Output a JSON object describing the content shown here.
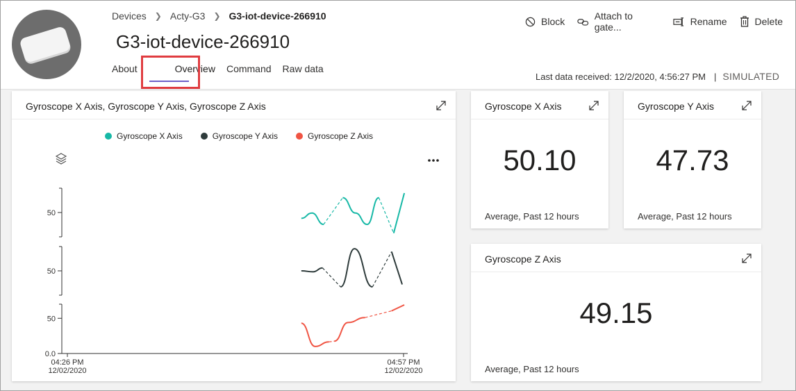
{
  "breadcrumb": {
    "items": [
      "Devices",
      "Acty-G3",
      "G3-iot-device-266910"
    ]
  },
  "device": {
    "title": "G3-iot-device-266910",
    "image": "device-image"
  },
  "tabs": [
    "About",
    "Overview",
    "Command",
    "Raw data"
  ],
  "active_tab": "Overview",
  "actions": {
    "block": "Block",
    "attach": "Attach to gate...",
    "rename": "Rename",
    "delete": "Delete"
  },
  "status": {
    "last_data": "Last data received: 12/2/2020, 4:56:27 PM",
    "separator": "|",
    "simulated": "SIMULATED"
  },
  "chart_card": {
    "title": "Gyroscope X Axis, Gyroscope Y Axis, Gyroscope Z Axis"
  },
  "tiles": {
    "x": {
      "title": "Gyroscope X Axis",
      "value": "50.10",
      "footer": "Average, Past 12 hours"
    },
    "y": {
      "title": "Gyroscope Y Axis",
      "value": "47.73",
      "footer": "Average, Past 12 hours"
    },
    "z": {
      "title": "Gyroscope Z Axis",
      "value": "49.15",
      "footer": "Average, Past 12 hours"
    }
  },
  "colors": {
    "x": "#16b8a6",
    "y": "#2e3b3b",
    "z": "#f05443",
    "accent": "#6c5fc7",
    "highlight": "#e03c40"
  },
  "chart_data": {
    "type": "line",
    "title": "Gyroscope X Axis, Gyroscope Y Axis, Gyroscope Z Axis",
    "layout": "stacked",
    "xlabel": "",
    "ylabel": "",
    "x_ticks": [
      {
        "time": "04:26 PM",
        "date": "12/02/2020",
        "t": 0
      },
      {
        "time": "04:57 PM",
        "date": "12/02/2020",
        "t": 31
      }
    ],
    "xlim": [
      0,
      31
    ],
    "series": [
      {
        "name": "Gyroscope X Axis",
        "key": "x",
        "y_tick_labels": [
          "50"
        ],
        "ylim": [
          40,
          60
        ],
        "y_ticks": [
          50
        ],
        "segments": [
          {
            "style": "solid",
            "points": [
              [
                22.5,
                47.6
              ],
              [
                23.5,
                49.8
              ],
              [
                24.6,
                45.1
              ]
            ]
          },
          {
            "style": "dashed",
            "points": [
              [
                24.6,
                45.1
              ],
              [
                26.4,
                56.1
              ]
            ]
          },
          {
            "style": "solid",
            "points": [
              [
                26.4,
                56.1
              ],
              [
                27.6,
                49.8
              ],
              [
                28.7,
                45.1
              ],
              [
                29.8,
                56.1
              ]
            ]
          },
          {
            "style": "dashed",
            "points": [
              [
                29.8,
                56.1
              ],
              [
                31.2,
                41.5
              ]
            ]
          },
          {
            "style": "solid",
            "points": [
              [
                31.2,
                41.5
              ],
              [
                32.2,
                58
              ]
            ]
          }
        ]
      },
      {
        "name": "Gyroscope Y Axis",
        "key": "y",
        "y_tick_labels": [
          "50"
        ],
        "ylim": [
          40,
          60
        ],
        "y_ticks": [
          50
        ],
        "segments": [
          {
            "style": "solid",
            "points": [
              [
                22.5,
                50
              ],
              [
                23.6,
                49.6
              ],
              [
                24.5,
                51.2
              ]
            ]
          },
          {
            "style": "dashed",
            "points": [
              [
                24.5,
                51.2
              ],
              [
                26.2,
                43.4
              ]
            ]
          },
          {
            "style": "solid",
            "points": [
              [
                26.2,
                43.4
              ],
              [
                27.5,
                59.1
              ],
              [
                29.2,
                43.4
              ]
            ]
          },
          {
            "style": "dashed",
            "points": [
              [
                29.2,
                43.4
              ],
              [
                31,
                57.9
              ]
            ]
          },
          {
            "style": "solid",
            "points": [
              [
                31,
                57.9
              ],
              [
                32,
                44.4
              ]
            ]
          }
        ]
      },
      {
        "name": "Gyroscope Z Axis",
        "key": "z",
        "y_tick_labels": [
          "50",
          "0.0"
        ],
        "ylim": [
          0,
          70
        ],
        "y_ticks": [
          50,
          0
        ],
        "segments": [
          {
            "style": "solid",
            "points": [
              [
                22.5,
                43
              ],
              [
                23.8,
                10
              ],
              [
                25.1,
                16.5
              ]
            ]
          },
          {
            "style": "dashed",
            "points": [
              [
                25.1,
                16.5
              ],
              [
                25.6,
                17.5
              ]
            ]
          },
          {
            "style": "solid",
            "points": [
              [
                25.6,
                17.5
              ],
              [
                26.9,
                44
              ],
              [
                28.5,
                51
              ]
            ]
          },
          {
            "style": "dashed",
            "points": [
              [
                28.5,
                51
              ],
              [
                31,
                60.5
              ]
            ]
          },
          {
            "style": "solid",
            "points": [
              [
                31,
                60.5
              ],
              [
                32.2,
                69
              ]
            ]
          }
        ]
      }
    ]
  }
}
